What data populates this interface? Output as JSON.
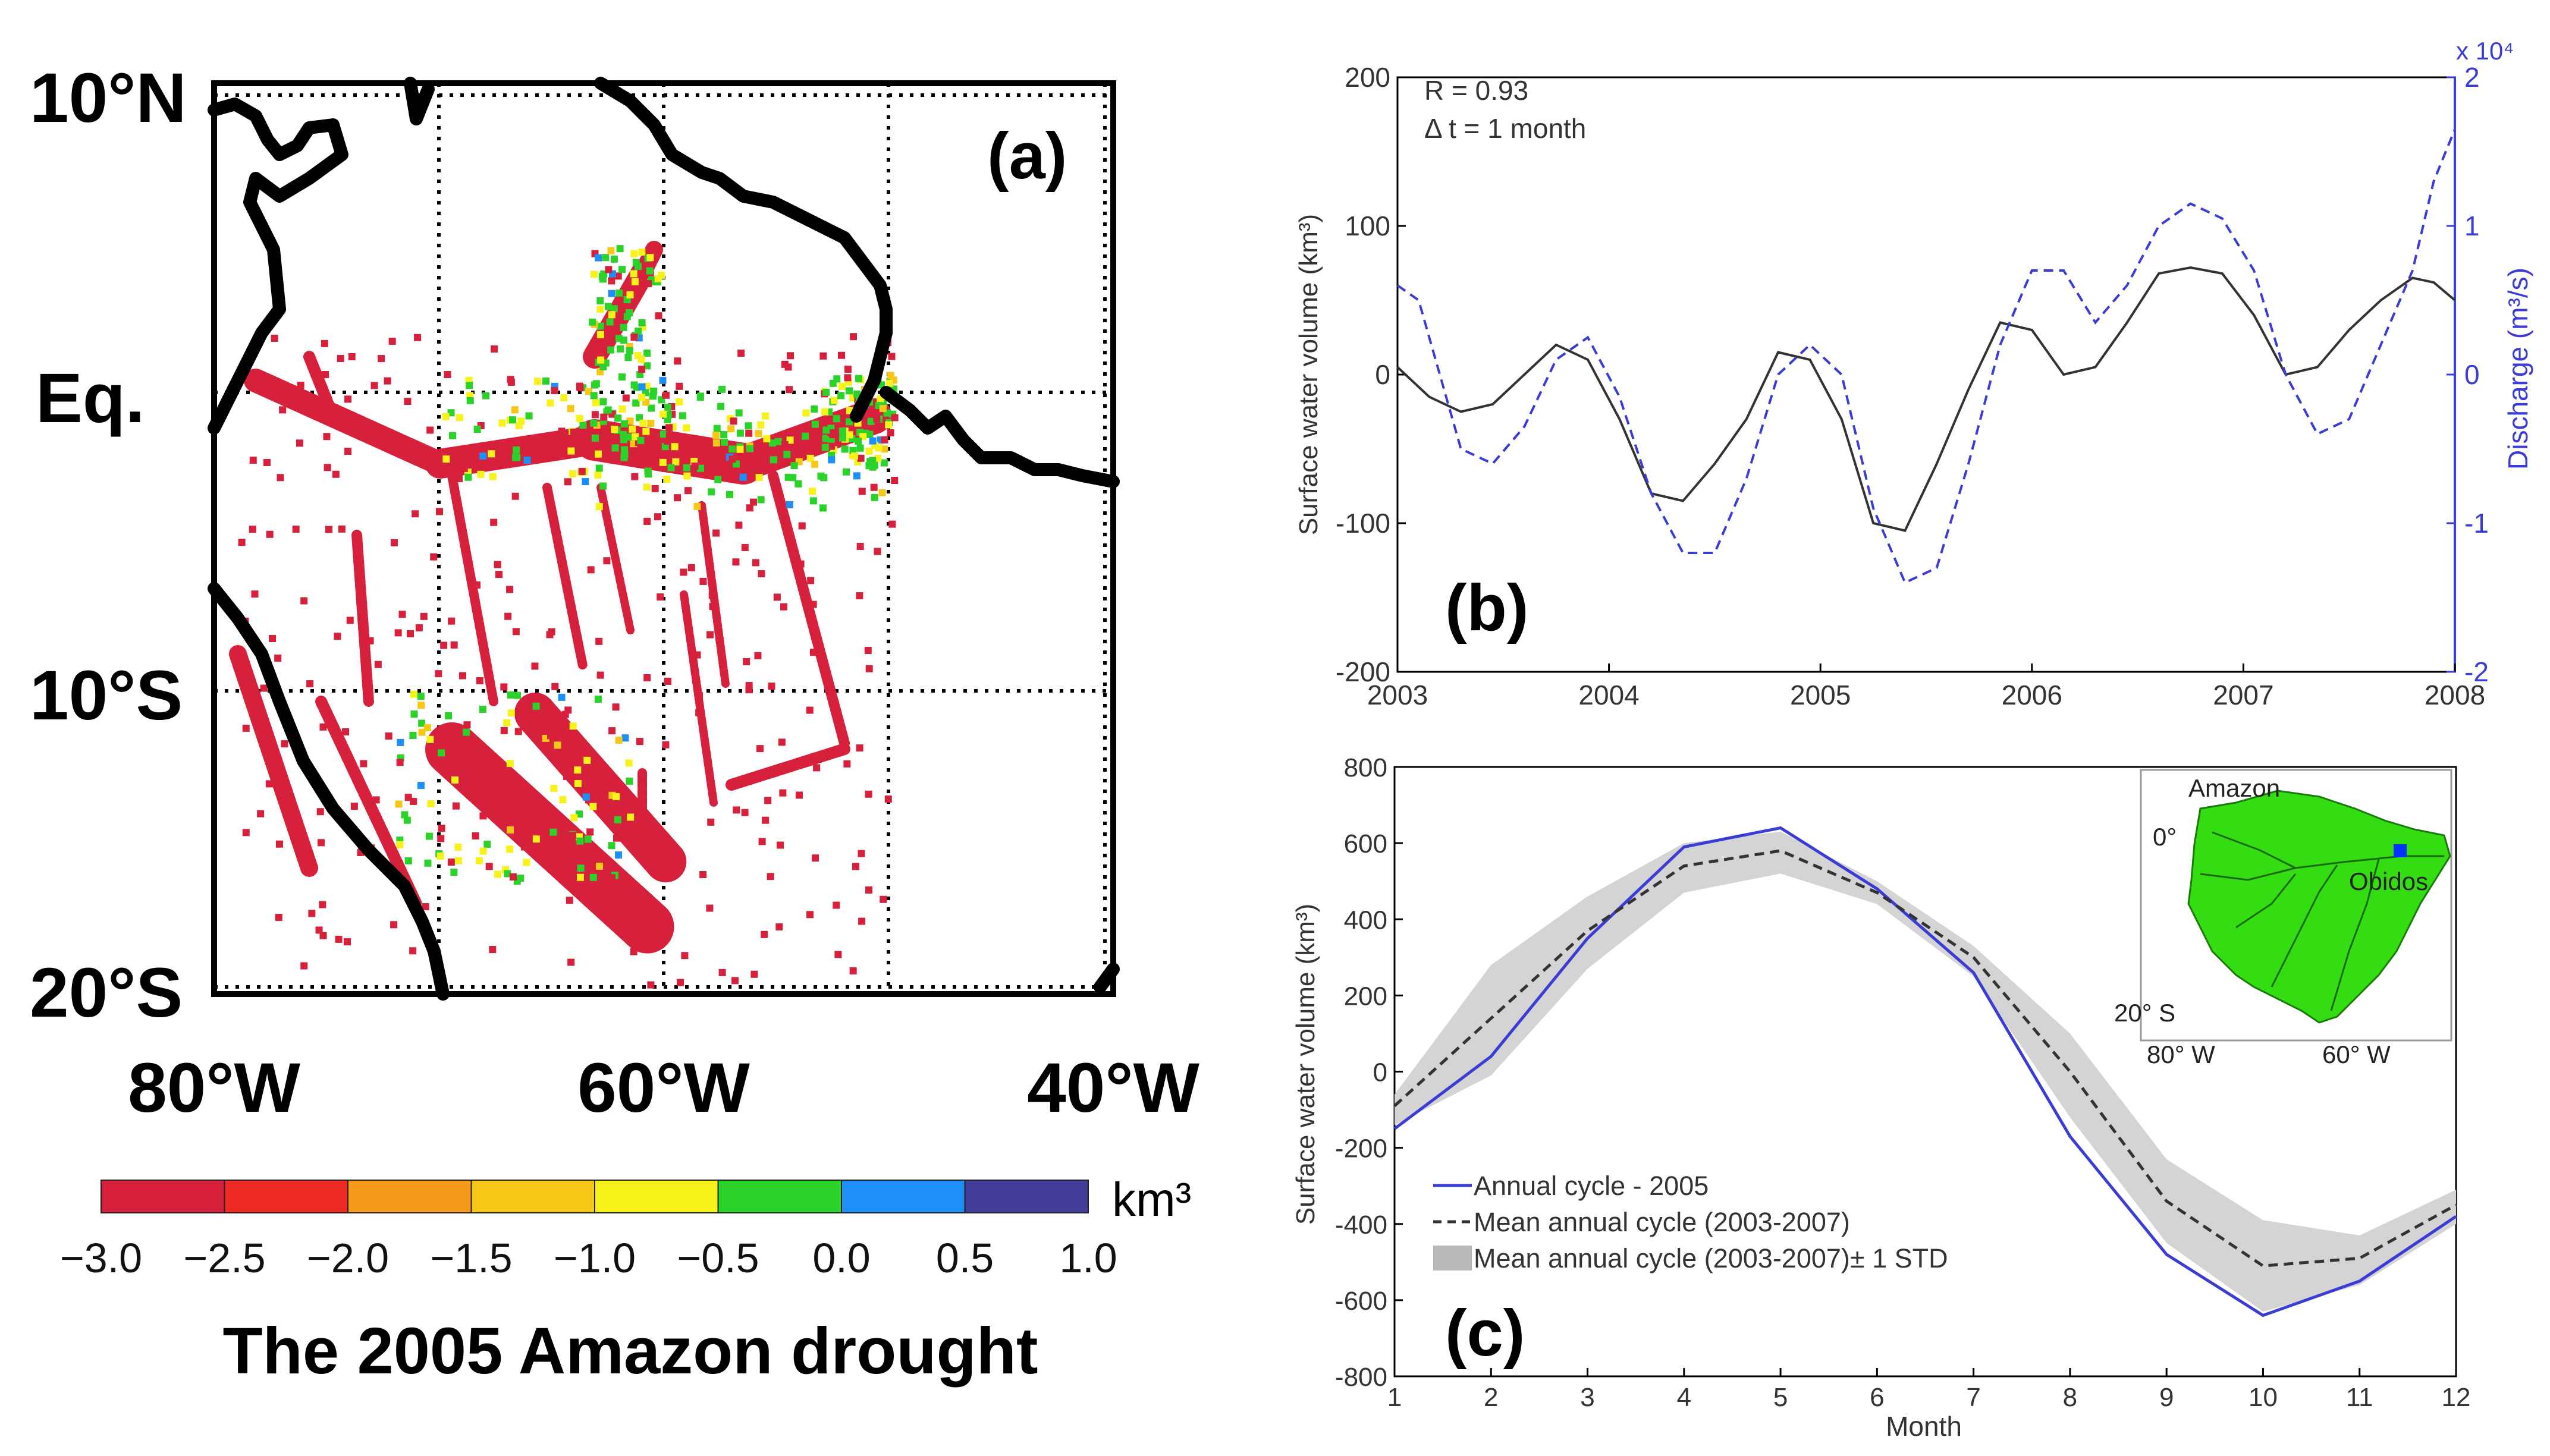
{
  "colors": {
    "axis": "#000000",
    "blue": "#3b3bd6",
    "dark": "#333333",
    "band": "#d4d4d4",
    "land": "#000000",
    "inset_green": "#33dd11",
    "obidos_marker": "#0033ff"
  },
  "panel_a": {
    "label": "(a)",
    "lat_labels": [
      "10°N",
      "Eq.",
      "10°S",
      "20°S"
    ],
    "lon_labels": [
      "80°W",
      "60°W",
      "40°W"
    ],
    "colorbar": {
      "unit": "km³",
      "ticks": [
        "−3.0",
        "−2.5",
        "−2.0",
        "−1.5",
        "−1.0",
        "−0.5",
        "0.0",
        "0.5",
        "1.0"
      ],
      "colors": [
        "#d6203c",
        "#ee2b24",
        "#f79a1c",
        "#f7c718",
        "#f7f21a",
        "#2ad22a",
        "#1e8ff7",
        "#443c99"
      ]
    },
    "caption": "The 2005 Amazon drought"
  },
  "chart_data": [
    {
      "panel": "b",
      "type": "line",
      "label": "(b)",
      "annotation_r": "R = 0.93",
      "annotation_dt": "Δ t = 1 month",
      "ylabel": "Surface water volume (km³)",
      "ylabel_right": "Discharge (m³/s)",
      "right_scale_label": "x 10⁴",
      "xlim": [
        2003,
        2008
      ],
      "ylim": [
        -200,
        200
      ],
      "ylim_right": [
        -2,
        2
      ],
      "xticks": [
        "2003",
        "2004",
        "2005",
        "2006",
        "2007",
        "2008"
      ],
      "yticks": [
        "-200",
        "-100",
        "0",
        "100",
        "200"
      ],
      "yticks_right": [
        "-2",
        "-1",
        "0",
        "1",
        "2"
      ],
      "series": [
        {
          "name": "Surface water volume",
          "axis": "left",
          "style": "solid",
          "x": [
            2003.0,
            2003.15,
            2003.3,
            2003.45,
            2003.6,
            2003.75,
            2003.9,
            2004.05,
            2004.2,
            2004.35,
            2004.5,
            2004.65,
            2004.8,
            2004.95,
            2005.1,
            2005.25,
            2005.4,
            2005.55,
            2005.7,
            2005.85,
            2006.0,
            2006.15,
            2006.3,
            2006.45,
            2006.6,
            2006.75,
            2006.9,
            2007.05,
            2007.2,
            2007.35,
            2007.5,
            2007.65,
            2007.8,
            2007.9,
            2008.0
          ],
          "values": [
            5,
            -15,
            -25,
            -20,
            0,
            20,
            10,
            -30,
            -80,
            -85,
            -60,
            -30,
            15,
            10,
            -30,
            -100,
            -105,
            -60,
            -10,
            35,
            30,
            0,
            5,
            35,
            68,
            72,
            68,
            40,
            0,
            5,
            30,
            50,
            65,
            62,
            50
          ]
        },
        {
          "name": "Discharge",
          "axis": "right",
          "style": "dashed",
          "x": [
            2003.0,
            2003.1,
            2003.2,
            2003.3,
            2003.45,
            2003.6,
            2003.75,
            2003.9,
            2004.05,
            2004.2,
            2004.35,
            2004.5,
            2004.65,
            2004.8,
            2004.95,
            2005.1,
            2005.25,
            2005.4,
            2005.55,
            2005.7,
            2005.85,
            2006.0,
            2006.15,
            2006.3,
            2006.45,
            2006.6,
            2006.75,
            2006.9,
            2007.05,
            2007.2,
            2007.35,
            2007.5,
            2007.65,
            2007.8,
            2007.9,
            2008.0
          ],
          "values": [
            0.6,
            0.5,
            0.0,
            -0.5,
            -0.6,
            -0.35,
            0.1,
            0.25,
            -0.15,
            -0.8,
            -1.2,
            -1.2,
            -0.7,
            0.0,
            0.2,
            0.0,
            -0.9,
            -1.4,
            -1.3,
            -0.6,
            0.2,
            0.7,
            0.7,
            0.35,
            0.6,
            1.0,
            1.15,
            1.05,
            0.7,
            0.0,
            -0.4,
            -0.3,
            0.2,
            0.7,
            1.3,
            1.65
          ]
        }
      ]
    },
    {
      "panel": "c",
      "type": "line",
      "label": "(c)",
      "xlabel": "Month",
      "ylabel": "Surface water volume (km³)",
      "xlim": [
        1,
        12
      ],
      "ylim": [
        -800,
        800
      ],
      "xticks": [
        "1",
        "2",
        "3",
        "4",
        "5",
        "6",
        "7",
        "8",
        "9",
        "10",
        "11",
        "12"
      ],
      "yticks": [
        "-800",
        "-600",
        "-400",
        "-200",
        "0",
        "200",
        "400",
        "600",
        "800"
      ],
      "x": [
        1,
        2,
        3,
        4,
        5,
        6,
        7,
        8,
        9,
        10,
        11,
        12
      ],
      "series": [
        {
          "name": "Annual cycle - 2005",
          "style": "solid",
          "values": [
            -150,
            40,
            350,
            590,
            640,
            480,
            260,
            -170,
            -480,
            -640,
            -550,
            -380
          ]
        },
        {
          "name": "Mean annual cycle (2003-2007)",
          "style": "dashed",
          "values": [
            -90,
            140,
            370,
            540,
            580,
            470,
            300,
            0,
            -340,
            -510,
            -490,
            -350
          ]
        },
        {
          "name": "Mean annual cycle (2003-2007)± 1 STD",
          "style": "band",
          "upper": [
            -60,
            280,
            460,
            600,
            630,
            500,
            330,
            100,
            -230,
            -390,
            -430,
            -310
          ],
          "lower": [
            -140,
            -10,
            270,
            470,
            520,
            440,
            250,
            -120,
            -450,
            -630,
            -560,
            -400
          ]
        }
      ],
      "inset": {
        "title": "Amazon",
        "lat_top": "0°",
        "lat_bottom": "20° S",
        "lon_left": "80° W",
        "lon_right": "60° W",
        "station": "Obidos"
      }
    }
  ]
}
